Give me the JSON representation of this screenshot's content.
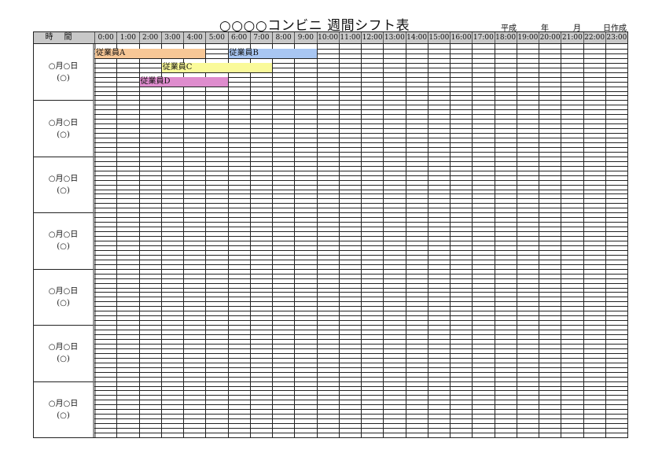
{
  "title": "○○○○コンビニ 週間シフト表",
  "created": {
    "era": "平成",
    "year": "年",
    "month": "月",
    "day": "日作成"
  },
  "header": {
    "label": "時間",
    "hours": [
      "0:00",
      "1:00",
      "2:00",
      "3:00",
      "4:00",
      "5:00",
      "6:00",
      "7:00",
      "8:00",
      "9:00",
      "10:00",
      "11:00",
      "12:00",
      "13:00",
      "14:00",
      "15:00",
      "16:00",
      "17:00",
      "18:00",
      "19:00",
      "20:00",
      "21:00",
      "22:00",
      "23:00"
    ]
  },
  "days": [
    {
      "date": "○月○日",
      "weekday": "(○)"
    },
    {
      "date": "○月○日",
      "weekday": "(○)"
    },
    {
      "date": "○月○日",
      "weekday": "(○)"
    },
    {
      "date": "○月○日",
      "weekday": "(○)"
    },
    {
      "date": "○月○日",
      "weekday": "(○)"
    },
    {
      "date": "○月○日",
      "weekday": "(○)"
    },
    {
      "date": "○月○日",
      "weekday": "(○)"
    }
  ],
  "shifts": [
    {
      "name": "従業員A",
      "start": 0,
      "end": 5,
      "slot": 0,
      "color": "#f7c796"
    },
    {
      "name": "従業員B",
      "start": 6,
      "end": 10,
      "slot": 0,
      "color": "#a8c6f2"
    },
    {
      "name": "従業員C",
      "start": 3,
      "end": 8,
      "slot": 1,
      "color": "#fafa9a"
    },
    {
      "name": "従業員D",
      "start": 2,
      "end": 6,
      "slot": 2,
      "color": "#de8ccd"
    }
  ]
}
